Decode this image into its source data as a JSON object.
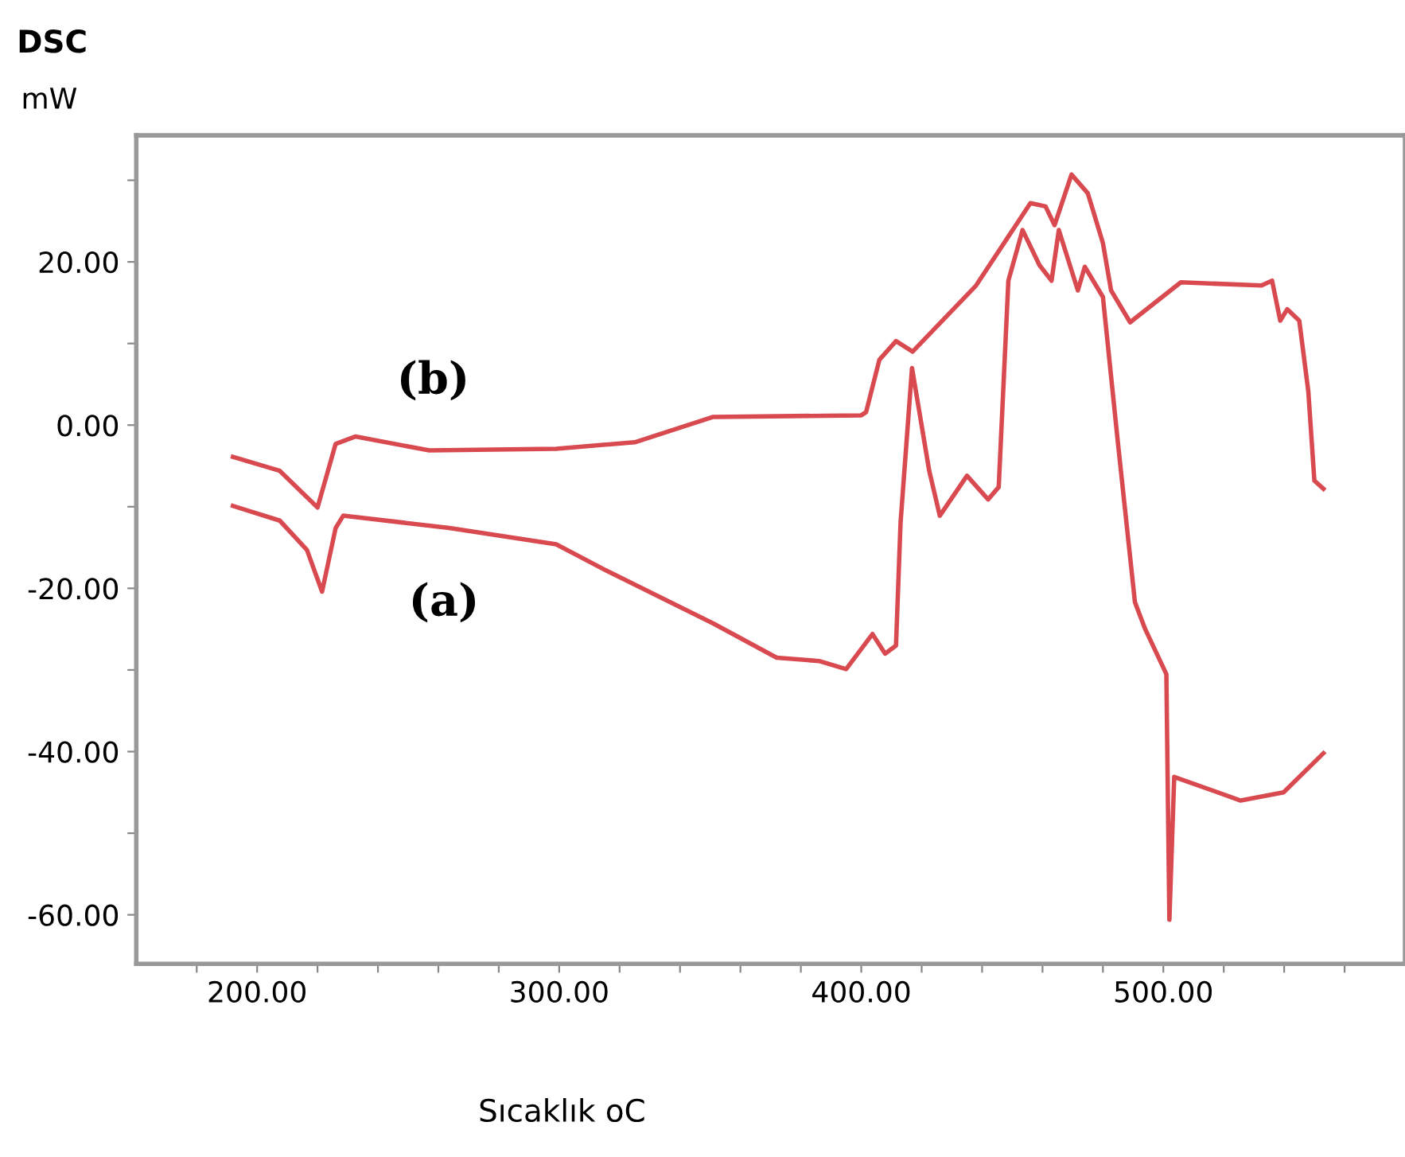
{
  "chart_data": {
    "type": "line",
    "title": "DSC",
    "ylabel": "mW",
    "xlabel": "Sıcaklık oC",
    "series": [
      {
        "color": "#d94a50",
        "x": [
          192,
          207.5,
          216.5,
          221.5,
          226,
          228.5,
          263.6,
          299,
          316,
          351,
          372,
          386,
          395,
          403.7,
          407.9,
          411.5,
          413,
          416.8,
          422.5,
          426,
          435,
          442,
          445.5,
          448.7,
          453.4,
          459,
          463,
          465.4,
          471.7,
          474,
          480,
          485,
          490.6,
          494,
          501,
          502,
          503.6,
          525.6,
          539.8,
          553
        ],
        "values": [
          -9.9,
          -11.7,
          -15.3,
          -20.4,
          -12.6,
          -11.1,
          -12.6,
          -14.6,
          -17.9,
          -24.3,
          -28.5,
          -28.9,
          -29.9,
          -25.6,
          -28,
          -27,
          -12,
          7,
          -5.6,
          -11.1,
          -6.2,
          -9.1,
          -7.6,
          17.7,
          23.9,
          19.6,
          17.7,
          23.9,
          16.5,
          19.4,
          15.7,
          -2.3,
          -21.7,
          -25,
          -30.5,
          -60.6,
          -43.1,
          -46,
          -45,
          -40.2
        ]
      },
      {
        "color": "#d94a50",
        "x": [
          192,
          207.5,
          220,
          226,
          232.5,
          257,
          299,
          325,
          351,
          400,
          401.6,
          406,
          411.5,
          417,
          438,
          456,
          461,
          464,
          469.6,
          475,
          480,
          482.7,
          489,
          505.8,
          532.5,
          536,
          538.7,
          541,
          545,
          548,
          550,
          553
        ],
        "values": [
          -3.9,
          -5.6,
          -10.1,
          -2.3,
          -1.4,
          -3.1,
          -2.9,
          -2.1,
          1,
          1.2,
          1.6,
          8,
          10.3,
          9,
          17.1,
          27.2,
          26.8,
          24.5,
          30.7,
          28.4,
          22.3,
          16.5,
          12.6,
          17.5,
          17.1,
          17.7,
          12.8,
          14.2,
          12.8,
          4.1,
          -6.8,
          -7.8
        ]
      }
    ],
    "annotations": [
      "(a)",
      "(b)"
    ],
    "xlim": [
      160,
      580
    ],
    "ylim": [
      -66,
      35.5
    ],
    "xticks": [
      {
        "value": 180,
        "label": null
      },
      {
        "value": 200,
        "label": "200.00"
      },
      {
        "value": 220,
        "label": null
      },
      {
        "value": 240,
        "label": null
      },
      {
        "value": 260,
        "label": null
      },
      {
        "value": 280,
        "label": null
      },
      {
        "value": 300,
        "label": "300.00"
      },
      {
        "value": 320,
        "label": null
      },
      {
        "value": 340,
        "label": null
      },
      {
        "value": 360,
        "label": null
      },
      {
        "value": 380,
        "label": null
      },
      {
        "value": 400,
        "label": "400.00"
      },
      {
        "value": 420,
        "label": null
      },
      {
        "value": 440,
        "label": null
      },
      {
        "value": 460,
        "label": null
      },
      {
        "value": 480,
        "label": null
      },
      {
        "value": 500,
        "label": "500.00"
      },
      {
        "value": 520,
        "label": null
      },
      {
        "value": 540,
        "label": null
      },
      {
        "value": 560,
        "label": null
      }
    ],
    "yticks": [
      {
        "value": -60,
        "label": "-60.00"
      },
      {
        "value": -50,
        "label": null
      },
      {
        "value": -40,
        "label": "-40.00"
      },
      {
        "value": -30,
        "label": null
      },
      {
        "value": -20,
        "label": "-20.00"
      },
      {
        "value": -10,
        "label": null
      },
      {
        "value": 0,
        "label": "0.00"
      },
      {
        "value": 10,
        "label": null
      },
      {
        "value": 20,
        "label": "20.00"
      },
      {
        "value": 30,
        "label": null
      }
    ],
    "grid": false,
    "legend": false,
    "marker": "none",
    "line_style": "solid"
  }
}
